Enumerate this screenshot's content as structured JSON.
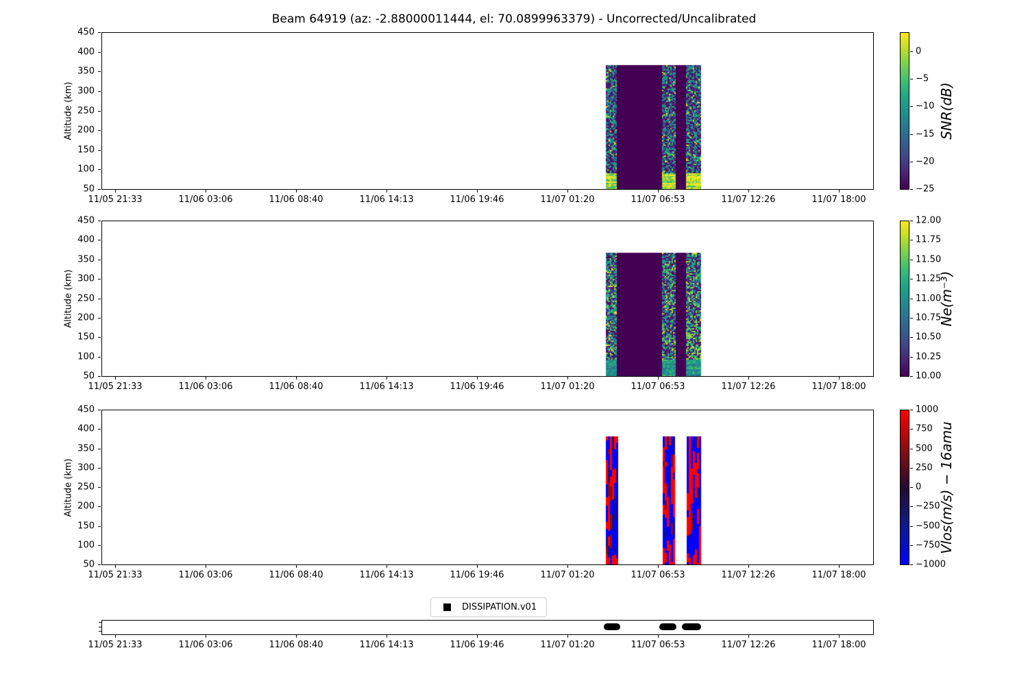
{
  "title": "Beam 64919 (az: -2.88000011444, el: 70.0899963379) - Uncorrected/Uncalibrated",
  "x_axis": {
    "tick_labels": [
      "11/05 21:33",
      "11/06 03:06",
      "11/06 08:40",
      "11/06 14:13",
      "11/06 19:46",
      "11/07 01:20",
      "11/07 06:53",
      "11/07 12:26",
      "11/07 18:00"
    ]
  },
  "y_axis": {
    "label": "Altitude (km)",
    "tick_labels": [
      "450",
      "400",
      "350",
      "300",
      "250",
      "200",
      "150",
      "100",
      "50"
    ],
    "range_km": [
      50,
      450
    ]
  },
  "panels": [
    {
      "name": "snr",
      "colorbar": {
        "label": "SNR(dB)",
        "colormap": "viridis",
        "tick_labels": [
          "0",
          "−5",
          "−10",
          "−15",
          "−20",
          "−25"
        ],
        "vmin": -25,
        "vmax_approx": 3.5
      }
    },
    {
      "name": "ne",
      "colorbar": {
        "label": "Ne(m⁻³)",
        "colormap": "viridis",
        "tick_labels": [
          "12.00",
          "11.75",
          "11.50",
          "11.25",
          "11.00",
          "10.75",
          "10.50",
          "10.25",
          "10.00"
        ],
        "vmin": 10,
        "vmax": 12
      }
    },
    {
      "name": "vlos",
      "colorbar": {
        "label": "Vlos(m/s) − 16amu",
        "colormap": "red-black-blue",
        "tick_labels": [
          "1000",
          "750",
          "500",
          "250",
          "0",
          "−250",
          "−500",
          "−750",
          "−1000"
        ],
        "vmin": -1000,
        "vmax": 1000
      }
    }
  ],
  "legend": {
    "label": "DISSIPATION.v01",
    "marker_icon": "black-square"
  },
  "colors": {
    "background": "#ffffff",
    "axis": "#000000",
    "no_signal_fill": "#440154",
    "vlos_positive": "#ff0000",
    "vlos_negative": "#0000ff",
    "viridis_stops": [
      "#440154",
      "#482475",
      "#414487",
      "#355f8d",
      "#2a788e",
      "#21918c",
      "#22a884",
      "#44bf70",
      "#7ad151",
      "#bddf26",
      "#fde725"
    ],
    "vlos_stops": [
      "#ff0000",
      "#8b0e13",
      "#250b2e",
      "#0d1b8b",
      "#0000ff"
    ]
  },
  "chart_data": [
    {
      "type": "heatmap",
      "title": "SNR(dB)",
      "ylabel": "Altitude (km)",
      "ylim": [
        50,
        450
      ],
      "x_tick_labels": [
        "11/05 21:33",
        "11/06 03:06",
        "11/06 08:40",
        "11/06 14:13",
        "11/06 19:46",
        "11/07 01:20",
        "11/07 06:53",
        "11/07 12:26",
        "11/07 18:00"
      ],
      "colorbar": {
        "label": "SNR(dB)",
        "ticks": [
          0,
          -5,
          -10,
          -15,
          -20,
          -25
        ],
        "colormap": "viridis"
      },
      "background": "empty (white) except one experiment interval on 11/07",
      "segments": [
        {
          "time": "11/07 ~03:41-04:22",
          "alt_km": [
            50,
            367
          ],
          "content": "speckled noise spanning ~-25..0 dB; bright ~0 dB horizontally-striped band below ~93 km"
        },
        {
          "time": "11/07 ~04:22-07:08",
          "alt_km": [
            50,
            367
          ],
          "content": "solid -25 dB (colormap minimum, no signal)"
        },
        {
          "time": "11/07 ~07:08-07:56",
          "alt_km": [
            50,
            367
          ],
          "content": "speckled noise; bright band below ~93 km"
        },
        {
          "time": "11/07 ~07:56-08:36",
          "alt_km": [
            50,
            367
          ],
          "content": "solid -25 dB (no signal)"
        },
        {
          "time": "11/07 ~08:36-09:29",
          "alt_km": [
            50,
            367
          ],
          "content": "speckled noise; bright band below ~93 km"
        }
      ]
    },
    {
      "type": "heatmap",
      "title": "Ne(m⁻³)",
      "ylabel": "Altitude (km)",
      "ylim": [
        50,
        450
      ],
      "x_tick_labels": [
        "11/05 21:33",
        "11/06 03:06",
        "11/06 08:40",
        "11/06 14:13",
        "11/06 19:46",
        "11/07 01:20",
        "11/07 06:53",
        "11/07 12:26",
        "11/07 18:00"
      ],
      "colorbar": {
        "label": "Ne(m⁻³)",
        "ticks": [
          12.0,
          11.75,
          11.5,
          11.25,
          11.0,
          10.75,
          10.5,
          10.25,
          10.0
        ],
        "colormap": "viridis"
      },
      "background": "empty (white) except one experiment interval on 11/07",
      "segments": [
        {
          "time": "11/07 ~03:41-04:22",
          "alt_km": [
            50,
            367
          ],
          "content": "speckled noise over full 10..12 range; teal striped band below ~93 km"
        },
        {
          "time": "11/07 ~04:22-07:08",
          "alt_km": [
            50,
            367
          ],
          "content": "solid ~10 (colormap minimum)"
        },
        {
          "time": "11/07 ~07:08-07:56",
          "alt_km": [
            50,
            367
          ],
          "content": "speckled noise; teal band below ~93 km"
        },
        {
          "time": "11/07 ~07:56-08:36",
          "alt_km": [
            50,
            367
          ],
          "content": "solid ~10 (colormap minimum)"
        },
        {
          "time": "11/07 ~08:36-09:29",
          "alt_km": [
            50,
            367
          ],
          "content": "speckled noise with brighter green patch ~100-200 km; teal band below ~93 km"
        }
      ]
    },
    {
      "type": "heatmap",
      "title": "Vlos(m/s) − 16amu",
      "ylabel": "Altitude (km)",
      "ylim": [
        50,
        450
      ],
      "x_tick_labels": [
        "11/05 21:33",
        "11/06 03:06",
        "11/06 08:40",
        "11/06 14:13",
        "11/06 19:46",
        "11/07 01:20",
        "11/07 06:53",
        "11/07 12:26",
        "11/07 18:00"
      ],
      "colorbar": {
        "label": "Vlos(m/s) − 16amu",
        "ticks": [
          1000,
          750,
          500,
          250,
          0,
          -250,
          -500,
          -750,
          -1000
        ],
        "colormap": "red-black-blue"
      },
      "background": "empty (white); only three narrow data columns on 11/07",
      "segments": [
        {
          "time": "11/07 ~03:41-04:22",
          "alt_km": [
            50,
            383
          ],
          "content": "random saturated red (+1000) / blue (-1000) cells; mostly red below ~85 km"
        },
        {
          "time": "11/07 ~07:08-07:56",
          "alt_km": [
            50,
            383
          ],
          "content": "random red/blue cells; mostly red below ~85 km"
        },
        {
          "time": "11/07 ~08:36-09:29",
          "alt_km": [
            50,
            383
          ],
          "content": "random red/blue cells; mostly red below ~85 km"
        }
      ]
    },
    {
      "type": "event-track",
      "series": "DISSIPATION.v01",
      "marker": "black square segments",
      "x_tick_labels": [
        "11/05 21:33",
        "11/06 03:06",
        "11/06 08:40",
        "11/06 14:13",
        "11/06 19:46",
        "11/07 01:20",
        "11/07 06:53",
        "11/07 12:26",
        "11/07 18:00"
      ],
      "events": [
        {
          "start": "11/07 ~03:34",
          "end": "11/07 ~04:34"
        },
        {
          "start": "11/07 ~06:58",
          "end": "11/07 ~08:01"
        },
        {
          "start": "11/07 ~08:21",
          "end": "11/07 ~09:32"
        }
      ]
    }
  ]
}
